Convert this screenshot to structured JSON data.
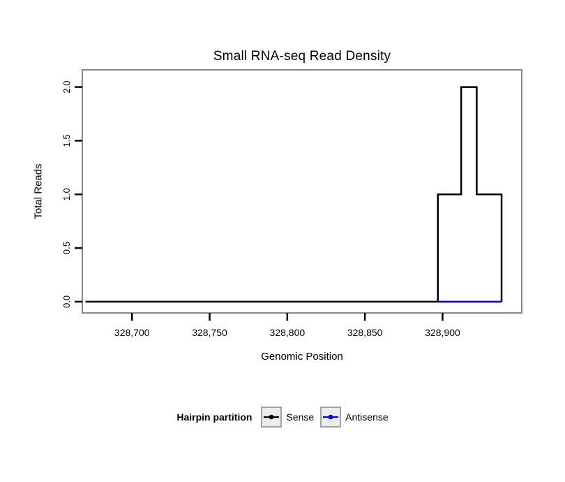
{
  "chart_data": {
    "type": "line",
    "title": "Small RNA-seq Read Density",
    "xlabel": "Genomic Position",
    "ylabel": "Total Reads",
    "xlim": [
      328668,
      328951
    ],
    "ylim": [
      -0.105,
      2.16
    ],
    "grid": false,
    "xticks": {
      "values": [
        328700,
        328750,
        328800,
        328850,
        328900
      ],
      "labels": [
        "328,700",
        "328,750",
        "328,800",
        "328,850",
        "328,900"
      ]
    },
    "yticks": {
      "values": [
        0,
        0.5,
        1,
        1.5,
        2
      ],
      "labels": [
        "0.0",
        "0.5",
        "1.0",
        "1.5",
        "2.0"
      ]
    },
    "legend": {
      "title": "Hairpin partition",
      "position": "bottom"
    },
    "series": [
      {
        "name": "Sense",
        "color": "#000000",
        "points": [
          [
            328670,
            0
          ],
          [
            328897,
            0
          ],
          [
            328897,
            1
          ],
          [
            328912,
            1
          ],
          [
            328912,
            2
          ],
          [
            328922,
            2
          ],
          [
            328922,
            1
          ],
          [
            328938,
            1
          ],
          [
            328938,
            0
          ]
        ]
      },
      {
        "name": "Antisense",
        "color": "#0000EE",
        "points": [
          [
            328897,
            0
          ],
          [
            328938,
            0
          ]
        ]
      }
    ],
    "style": {
      "panel_border": "#888888",
      "tick_color": "#000000",
      "legend_key_fill": "#ECECEC",
      "legend_key_border": "#A3A3A3"
    }
  }
}
